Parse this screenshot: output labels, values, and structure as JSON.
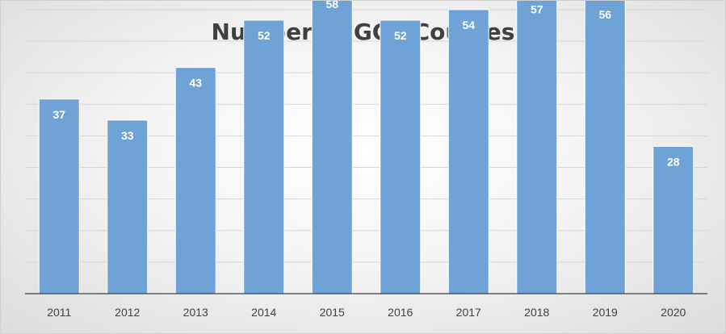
{
  "chart_data": {
    "type": "bar",
    "title": "Number of GCP Courses",
    "categories": [
      "2011",
      "2012",
      "2013",
      "2014",
      "2015",
      "2016",
      "2017",
      "2018",
      "2019",
      "2020"
    ],
    "values": [
      37,
      33,
      43,
      52,
      58,
      52,
      54,
      57,
      56,
      28
    ],
    "xlabel": "",
    "ylabel": "",
    "ylim": [
      0,
      60
    ],
    "grid": true,
    "legend": "none",
    "bar_color": "#6fa3d8",
    "label_color": "#ffffff"
  }
}
